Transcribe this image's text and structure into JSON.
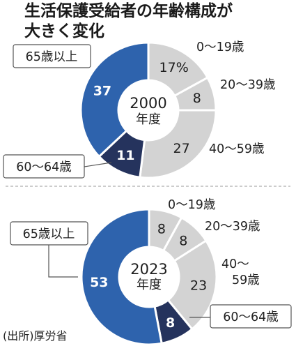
{
  "title_line1": "生活保護受給者の年齢構成が",
  "title_line2": "大きく変化",
  "source": "(出所)厚労省",
  "colors": {
    "age_65_plus": "#2e63ad",
    "age_60_64": "#25335d",
    "age_0_59": "#d3d3d3"
  },
  "chart_data": [
    {
      "type": "pie",
      "donut": true,
      "center_year": "2000",
      "center_unit": "年度",
      "categories": [
        "0〜19歳",
        "20〜39歳",
        "40〜59歳",
        "60〜64歳",
        "65歳以上"
      ],
      "values": [
        17,
        8,
        27,
        11,
        37
      ],
      "value_labels": [
        "17%",
        "8",
        "27",
        "11",
        "37"
      ]
    },
    {
      "type": "pie",
      "donut": true,
      "center_year": "2023",
      "center_unit": "年度",
      "categories": [
        "0〜19歳",
        "20〜39歳",
        "40〜59歳",
        "60〜64歳",
        "65歳以上"
      ],
      "values": [
        8,
        8,
        23,
        8,
        53
      ],
      "value_labels": [
        "8",
        "8",
        "23",
        "8",
        "53"
      ]
    }
  ],
  "category_labels_2023": {
    "age_40_59_line1": "40〜",
    "age_40_59_line2": "59歳"
  }
}
